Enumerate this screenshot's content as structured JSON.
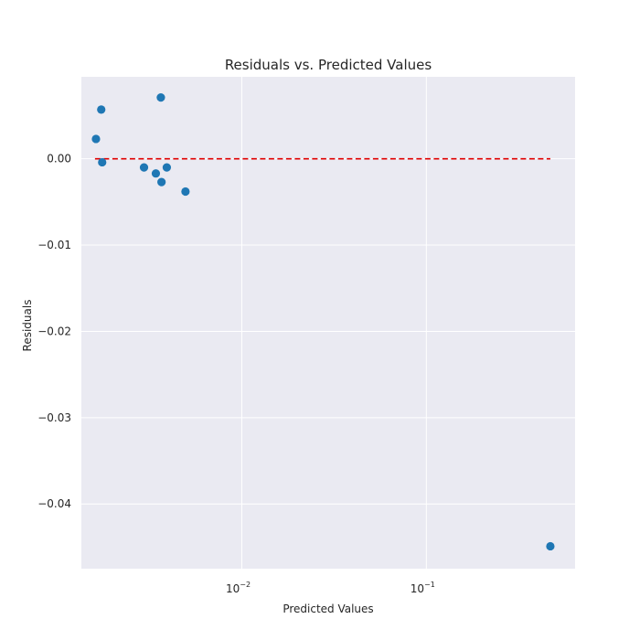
{
  "chart_data": {
    "type": "scatter",
    "title": "Residuals vs. Predicted Values",
    "xlabel": "Predicted Values",
    "ylabel": "Residuals",
    "xscale": "log",
    "xlim": [
      0.00135,
      0.64
    ],
    "ylim": [
      -0.0475,
      0.0095
    ],
    "grid": true,
    "background_color": "#eaeaf2",
    "point_color": "#1f77b4",
    "reference_line": {
      "y": 0.0,
      "x_range": [
        0.0016,
        0.47
      ],
      "color": "#e00000",
      "style": "dashed"
    },
    "x_ticks": [
      {
        "value": 0.01,
        "base": "10",
        "exp": "−2"
      },
      {
        "value": 0.1,
        "base": "10",
        "exp": "−1"
      }
    ],
    "y_ticks": [
      {
        "value": 0.0,
        "label": "0.00"
      },
      {
        "value": -0.01,
        "label": "−0.01"
      },
      {
        "value": -0.02,
        "label": "−0.02"
      },
      {
        "value": -0.03,
        "label": "−0.03"
      },
      {
        "value": -0.04,
        "label": "−0.04"
      }
    ],
    "points": [
      {
        "x": 0.00162,
        "y": 0.0023
      },
      {
        "x": 0.00173,
        "y": 0.0057
      },
      {
        "x": 0.00175,
        "y": -0.0004
      },
      {
        "x": 0.00295,
        "y": -0.001
      },
      {
        "x": 0.00342,
        "y": -0.0017
      },
      {
        "x": 0.00364,
        "y": 0.0071
      },
      {
        "x": 0.00367,
        "y": -0.0027
      },
      {
        "x": 0.00392,
        "y": -0.001
      },
      {
        "x": 0.00495,
        "y": -0.0038
      },
      {
        "x": 0.47,
        "y": -0.0449
      }
    ]
  }
}
